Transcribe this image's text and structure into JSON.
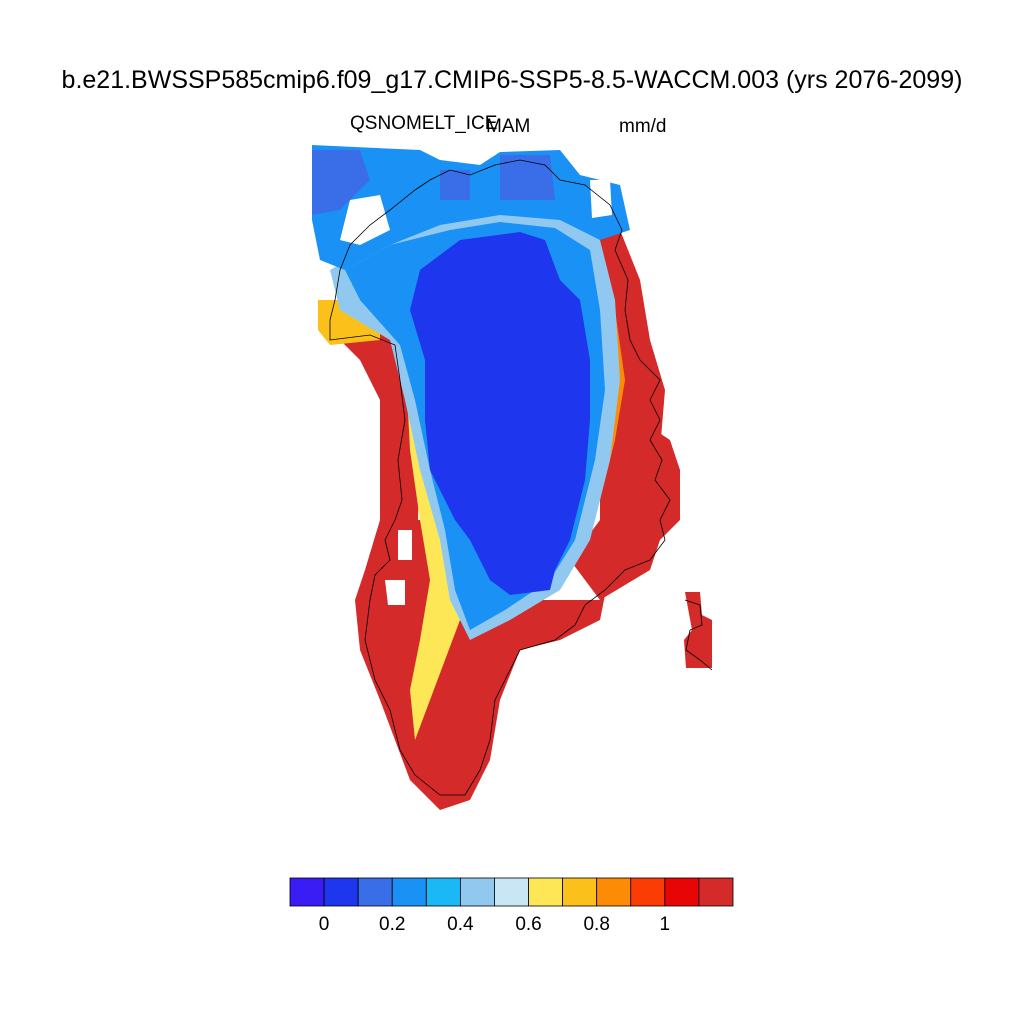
{
  "title": "b.e21.BWSSP585cmip6.f09_g17.CMIP6-SSP5-8.5-WACCM.003 (yrs 2076-2099)",
  "variable": "QSNOMELT_ICE",
  "season": "MAM",
  "units": "mm/d",
  "colorbar": {
    "colors": [
      "#3a1cf5",
      "#1e36ee",
      "#3a6ee8",
      "#1a92f5",
      "#1ab8f5",
      "#90c8ef",
      "#c9e6f5",
      "#fde756",
      "#fcc01a",
      "#fc8c05",
      "#fc3c05",
      "#e80505",
      "#d42a2a"
    ],
    "tick_labels": [
      "0",
      "0.2",
      "0.4",
      "0.6",
      "0.8",
      "1"
    ],
    "tick_values": [
      0,
      0.2,
      0.4,
      0.6,
      0.8,
      1.0
    ],
    "levels": [
      0,
      0.1,
      0.2,
      0.3,
      0.4,
      0.5,
      0.6,
      0.7,
      0.8,
      0.9,
      1.0,
      1.1
    ]
  },
  "legend": {
    "interior": "#1e36ee",
    "coast": "#d42a2a"
  }
}
